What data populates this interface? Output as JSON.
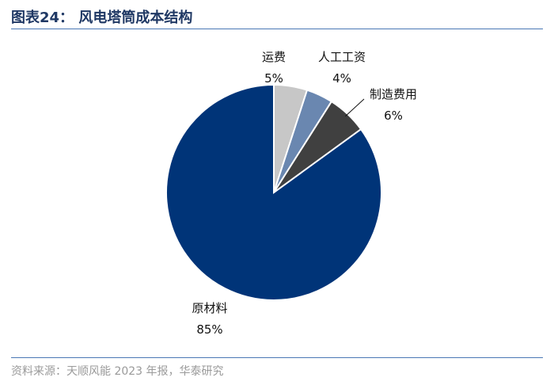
{
  "header": {
    "title": "图表24：   风电塔筒成本结构"
  },
  "footer": {
    "source": "资料来源：天顺风能 2023 年报，华泰研究"
  },
  "chart_data": {
    "type": "pie",
    "title": "风电塔筒成本结构",
    "slices": [
      {
        "name": "原材料",
        "value": 85,
        "label": "85%",
        "color": "#003478"
      },
      {
        "name": "运费",
        "value": 5,
        "label": "5%",
        "color": "#c7c7c7"
      },
      {
        "name": "人工工资",
        "value": 4,
        "label": "4%",
        "color": "#6a87b0"
      },
      {
        "name": "制造费用",
        "value": 6,
        "label": "6%",
        "color": "#404040"
      }
    ],
    "legend": "none"
  }
}
